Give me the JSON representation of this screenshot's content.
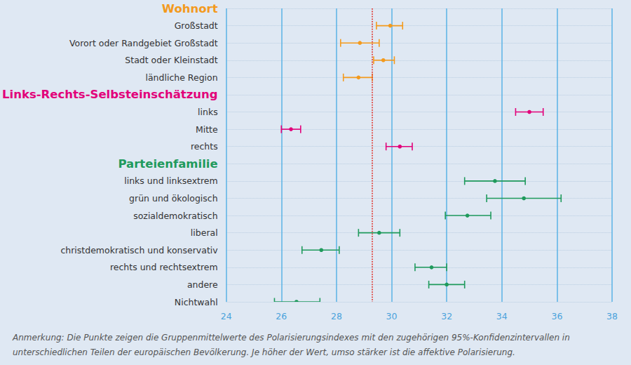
{
  "chart_data": {
    "type": "scatter",
    "orientation": "horizontal",
    "grid": true,
    "categories": [
      "Wohnort",
      "Großstadt",
      "Vorort oder Randgebiet Großstadt",
      "Stadt oder Kleinstadt",
      "ländliche Region",
      "Links-Rechts-Selbsteinschätzung",
      "links",
      "Mitte",
      "rechts",
      "Parteienfamilie",
      "links und linksextrem",
      "grün und ökologisch",
      "sozialdemokratisch",
      "liberal",
      "christdemokratisch und konservativ",
      "rechts und rechtsextrem",
      "andere",
      "Nichtwahl"
    ],
    "series": [
      {
        "name": "Wohnort",
        "color": "#f39a1d",
        "values": [
          null,
          29.95,
          28.85,
          29.7,
          28.8,
          null,
          null,
          null,
          null,
          null,
          null,
          null,
          null,
          null,
          null,
          null,
          null,
          null
        ],
        "ci_low": [
          null,
          29.45,
          28.15,
          29.35,
          28.25,
          null,
          null,
          null,
          null,
          null,
          null,
          null,
          null,
          null,
          null,
          null,
          null,
          null
        ],
        "ci_high": [
          null,
          30.4,
          29.55,
          30.1,
          29.3,
          null,
          null,
          null,
          null,
          null,
          null,
          null,
          null,
          null,
          null,
          null,
          null,
          null
        ]
      },
      {
        "name": "Links-Rechts-Selbsteinschätzung",
        "color": "#e2007a",
        "values": [
          null,
          null,
          null,
          null,
          null,
          null,
          35.0,
          26.35,
          30.3,
          null,
          null,
          null,
          null,
          null,
          null,
          null,
          null,
          null
        ],
        "ci_low": [
          null,
          null,
          null,
          null,
          null,
          null,
          34.5,
          26.0,
          29.8,
          null,
          null,
          null,
          null,
          null,
          null,
          null,
          null,
          null
        ],
        "ci_high": [
          null,
          null,
          null,
          null,
          null,
          null,
          35.5,
          26.7,
          30.75,
          null,
          null,
          null,
          null,
          null,
          null,
          null,
          null,
          null
        ]
      },
      {
        "name": "Parteienfamilie",
        "color": "#1f9a5c",
        "values": [
          null,
          null,
          null,
          null,
          null,
          null,
          null,
          null,
          null,
          null,
          33.75,
          34.8,
          32.75,
          29.55,
          27.45,
          31.45,
          32.0,
          26.55
        ],
        "ci_low": [
          null,
          null,
          null,
          null,
          null,
          null,
          null,
          null,
          null,
          null,
          32.65,
          33.45,
          31.95,
          28.8,
          26.75,
          30.85,
          31.35,
          25.75
        ],
        "ci_high": [
          null,
          null,
          null,
          null,
          null,
          null,
          null,
          null,
          null,
          null,
          34.85,
          36.15,
          33.6,
          30.3,
          28.1,
          32.0,
          32.65,
          27.4
        ]
      }
    ],
    "reference_line": 29.3,
    "xlim": [
      24,
      38
    ],
    "xticks": [
      24,
      26,
      28,
      30,
      32,
      34,
      36,
      38
    ],
    "note": "Anmerkung: Die Punkte zeigen die Gruppenmittelwerte des Polarisierungsindexes mit den zugehörigen 95%-Konfidenzintervallen in unterschiedlichen Teilen der europäischen Bevölkerung. Je höher der Wert, umso stärker ist die affektive Polarisierung."
  }
}
